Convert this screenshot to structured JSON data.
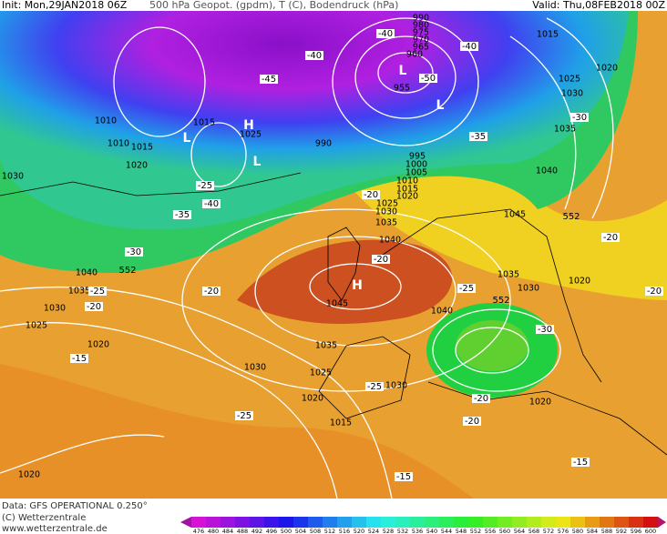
{
  "header": {
    "init": "Init: Mon,29JAN2018 06Z",
    "title": "500 hPa Geopot. (gpdm), T (C), Bodendruck (hPa)",
    "valid": "Valid: Thu,08FEB2018 00Z"
  },
  "footer": {
    "data": "Data: GFS OPERATIONAL 0.250°",
    "copyright": "(C) Wetterzentrale",
    "url": "www.wetterzentrale.de"
  },
  "colorbar": {
    "labels": [
      476,
      480,
      484,
      488,
      492,
      496,
      500,
      504,
      508,
      512,
      516,
      520,
      524,
      528,
      532,
      536,
      540,
      544,
      548,
      552,
      556,
      560,
      564,
      568,
      572,
      576,
      580,
      584,
      588,
      592,
      596,
      600
    ]
  },
  "map": {
    "pressure_labels": [
      "1015",
      "1020",
      "1025",
      "1030",
      "1035",
      "1040",
      "1045",
      "1010",
      "1010",
      "1015",
      "1020",
      "1030",
      "1015",
      "1025",
      "990",
      "955",
      "995",
      "1000",
      "1005",
      "1010",
      "1015",
      "1020",
      "1025",
      "1030",
      "1035",
      "1040",
      "1045",
      "1040",
      "1035",
      "1030",
      "1025",
      "1020",
      "1035",
      "1030",
      "1025",
      "1030",
      "1020",
      "1015",
      "1020",
      "1020",
      "1020",
      "1030",
      "1035",
      "1040",
      "990",
      "980",
      "975",
      "970",
      "965",
      "960"
    ],
    "temperature_labels": [
      "-40",
      "-40",
      "-45",
      "-50",
      "-40",
      "-35",
      "-30",
      "-25",
      "-40",
      "-35",
      "-30",
      "-25",
      "-20",
      "-20",
      "-20",
      "-25",
      "-15",
      "-25",
      "-25",
      "-20",
      "-20",
      "-15",
      "-15",
      "-30",
      "-20",
      "-20",
      "-20"
    ],
    "geopotential_labels": [
      "552",
      "552",
      "552"
    ],
    "systems": [
      "H",
      "L",
      "L",
      "L",
      "L",
      "H"
    ]
  }
}
